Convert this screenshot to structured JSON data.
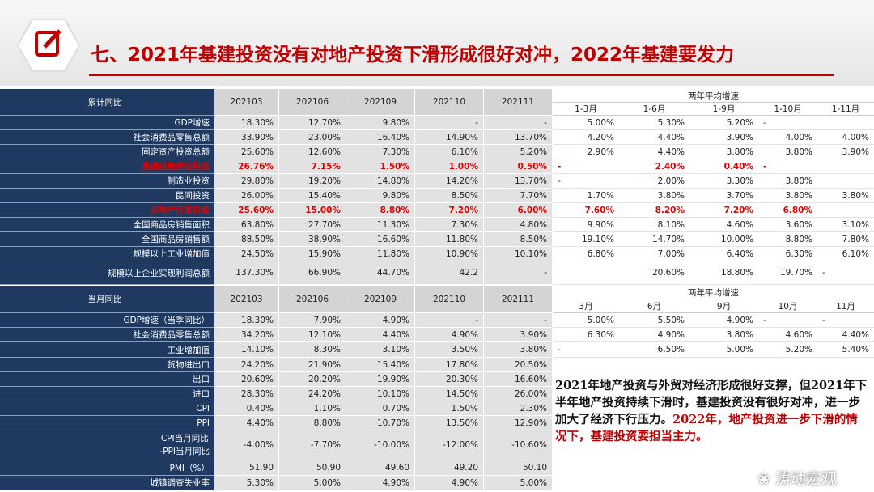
{
  "header": {
    "title": "七、2021年基建投资没有对地产投资下滑形成很好对冲，2022年基建要发力"
  },
  "table1": {
    "corner": "累计同比",
    "periods": [
      "202103",
      "202106",
      "202109",
      "202110",
      "202111"
    ],
    "avg_title": "两年平均增速",
    "avg_periods": [
      "1-3月",
      "1-6月",
      "1-9月",
      "1-10月",
      "1-11月"
    ],
    "rows": [
      {
        "label": "GDP增速",
        "values": [
          "18.30%",
          "12.70%",
          "9.80%",
          "-",
          "-"
        ],
        "avg": [
          "5.00%",
          "5.30%",
          "5.20%",
          "-",
          null
        ]
      },
      {
        "label": "社会消费品零售总额",
        "values": [
          "33.90%",
          "23.00%",
          "16.40%",
          "14.90%",
          "13.70%"
        ],
        "avg": [
          "4.20%",
          "4.40%",
          "3.90%",
          "4.00%",
          "4.00%"
        ]
      },
      {
        "label": "固定资产投资总额",
        "values": [
          "25.60%",
          "12.60%",
          "7.30%",
          "6.10%",
          "5.20%"
        ],
        "avg": [
          "2.90%",
          "4.40%",
          "3.80%",
          "3.80%",
          "3.90%"
        ]
      },
      {
        "label": "基础设施建设投资",
        "highlight": true,
        "values": [
          "26.76%",
          "7.15%",
          "1.50%",
          "1.00%",
          "0.50%"
        ],
        "avg": [
          "-",
          "2.40%",
          "0.40%",
          "-",
          null
        ]
      },
      {
        "label": "制造业投资",
        "values": [
          "29.80%",
          "19.20%",
          "14.80%",
          "14.20%",
          "13.70%"
        ],
        "avg": [
          "-",
          "2.00%",
          "3.30%",
          "3.80%",
          null
        ]
      },
      {
        "label": "民间投资",
        "values": [
          "26.00%",
          "15.40%",
          "9.80%",
          "8.50%",
          "7.70%"
        ],
        "avg": [
          "1.70%",
          "3.80%",
          "3.70%",
          "3.80%",
          "3.80%"
        ]
      },
      {
        "label": "房地产开发投资",
        "highlight": true,
        "values": [
          "25.60%",
          "15.00%",
          "8.80%",
          "7.20%",
          "6.00%"
        ],
        "avg": [
          "7.60%",
          "8.20%",
          "7.20%",
          "6.80%",
          null
        ]
      },
      {
        "label": "全国商品房销售面积",
        "values": [
          "63.80%",
          "27.70%",
          "11.30%",
          "7.30%",
          "4.80%"
        ],
        "avg": [
          "9.90%",
          "8.10%",
          "4.60%",
          "3.60%",
          "3.10%"
        ]
      },
      {
        "label": "全国商品房销售额",
        "values": [
          "88.50%",
          "38.90%",
          "16.60%",
          "11.80%",
          "8.50%"
        ],
        "avg": [
          "19.10%",
          "14.70%",
          "10.00%",
          "8.80%",
          "7.80%"
        ]
      },
      {
        "label": "规模以上工业增加值",
        "values": [
          "24.50%",
          "15.90%",
          "11.80%",
          "10.90%",
          "10.10%"
        ],
        "avg": [
          "6.80%",
          "7.00%",
          "6.40%",
          "6.30%",
          "6.10%"
        ]
      },
      {
        "label": "规模以上企业实现利润总额",
        "values": [
          "137.30%",
          "66.90%",
          "44.70%",
          "42.2",
          "-"
        ],
        "avg": [
          null,
          "20.60%",
          "18.80%",
          "19.70%",
          "-"
        ]
      }
    ]
  },
  "table2": {
    "corner": "当月同比",
    "periods": [
      "202103",
      "202106",
      "202109",
      "202110",
      "202111"
    ],
    "avg_title": "两年平均增速",
    "avg_periods": [
      "3月",
      "6月",
      "9月",
      "10月",
      "11月"
    ],
    "rows": [
      {
        "label": "GDP增速（当季同比）",
        "values": [
          "18.30%",
          "7.90%",
          "4.90%",
          "-",
          "-"
        ],
        "avg": [
          "5.00%",
          "5.50%",
          "4.90%",
          "-",
          "-"
        ]
      },
      {
        "label": "社会消费品零售总额",
        "values": [
          "34.20%",
          "12.10%",
          "4.40%",
          "4.90%",
          "3.90%"
        ],
        "avg": [
          "6.30%",
          "4.90%",
          "3.80%",
          "4.60%",
          "4.40%"
        ]
      },
      {
        "label": "工业增加值",
        "values": [
          "14.10%",
          "8.30%",
          "3.10%",
          "3.50%",
          "3.80%"
        ],
        "avg": [
          "-",
          "6.50%",
          "5.00%",
          "5.20%",
          "5.40%"
        ]
      },
      {
        "label": "货物进出口",
        "values": [
          "24.20%",
          "21.90%",
          "15.40%",
          "17.80%",
          "20.50%"
        ]
      },
      {
        "label": "出口",
        "values": [
          "20.60%",
          "20.20%",
          "19.90%",
          "20.30%",
          "16.60%"
        ]
      },
      {
        "label": "进口",
        "values": [
          "28.30%",
          "24.20%",
          "10.10%",
          "14.50%",
          "26.00%"
        ]
      },
      {
        "label": "CPI",
        "values": [
          "0.40%",
          "1.10%",
          "0.70%",
          "1.50%",
          "2.30%"
        ]
      },
      {
        "label": "PPI",
        "values": [
          "4.40%",
          "8.80%",
          "10.70%",
          "13.50%",
          "12.90%"
        ]
      },
      {
        "label": "CPI当月同比 -PPI当月同比",
        "values": [
          "-4.00%",
          "-7.70%",
          "-10.00%",
          "-12.00%",
          "-10.60%"
        ]
      },
      {
        "label": "PMI（%）",
        "values": [
          "51.90",
          "50.90",
          "49.60",
          "49.20",
          "50.10"
        ]
      },
      {
        "label": "城镇调查失业率",
        "values": [
          "5.30%",
          "5.00%",
          "4.90%",
          "4.90%",
          "5.00%"
        ]
      }
    ]
  },
  "note": {
    "text": "2021年地产投资与外贸对经济形成很好支撑，但2021年下半年地产投资持续下滑时，基建投资没有很好对冲，进一步加大了经济下行压力。",
    "emphasis": "2022年，地产投资进一步下滑的情况下，基建投资要担当主力。"
  },
  "watermark": "涛动宏观"
}
